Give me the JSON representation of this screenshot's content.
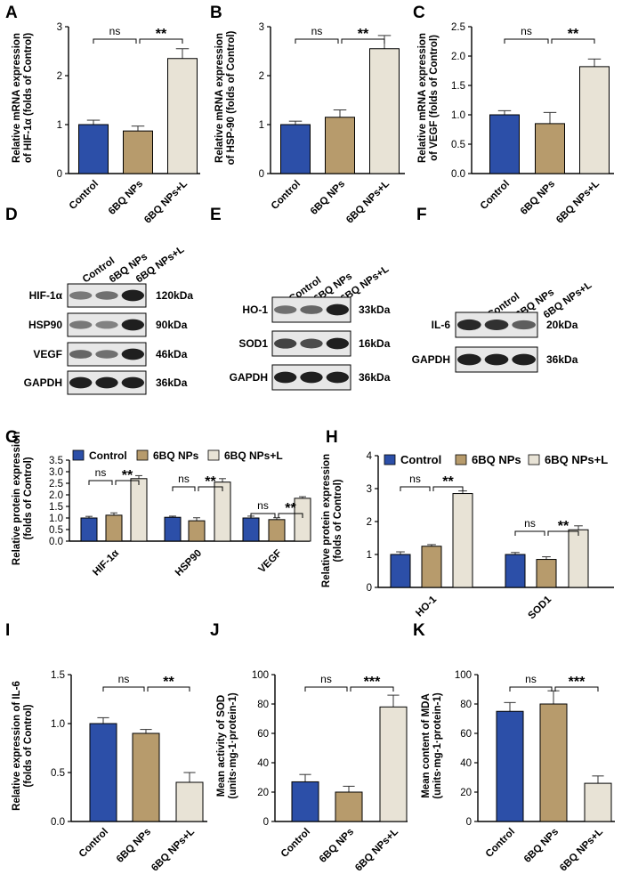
{
  "colors": {
    "control": "#2c4fa8",
    "np": "#b79b6c",
    "npl": "#e8e3d6",
    "edge": "#000000",
    "blot_bg": "#e7e7e7"
  },
  "legend_labels": [
    "Control",
    "6BQ NPs",
    "6BQ NPs+L"
  ],
  "chart_data": [
    {
      "panel": "A",
      "type": "bar",
      "categories": [
        "Control",
        "6BQ NPs",
        "6BQ NPs+L"
      ],
      "values": [
        1.0,
        0.87,
        2.35
      ],
      "errors": [
        0.09,
        0.1,
        0.2
      ],
      "ylabel_lines": [
        "Relative mRNA expression",
        "of HIF-1α (folds of Control)"
      ],
      "ylim": [
        0,
        3
      ],
      "yticks": [
        "0",
        "1",
        "2",
        "3"
      ],
      "sig": [
        {
          "label": "ns"
        },
        {
          "label": "**"
        }
      ]
    },
    {
      "panel": "B",
      "type": "bar",
      "categories": [
        "Control",
        "6BQ NPs",
        "6BQ NPs+L"
      ],
      "values": [
        1.0,
        1.15,
        2.55
      ],
      "errors": [
        0.07,
        0.15,
        0.27
      ],
      "ylabel_lines": [
        "Relative mRNA expression",
        "of HSP-90 (folds of Control)"
      ],
      "ylim": [
        0,
        3
      ],
      "yticks": [
        "0",
        "1",
        "2",
        "3"
      ],
      "sig": [
        {
          "label": "ns"
        },
        {
          "label": "**"
        }
      ]
    },
    {
      "panel": "C",
      "type": "bar",
      "categories": [
        "Control",
        "6BQ NPs",
        "6BQ NPs+L"
      ],
      "values": [
        1.0,
        0.85,
        1.82
      ],
      "errors": [
        0.07,
        0.19,
        0.13
      ],
      "ylabel_lines": [
        "Relative mRNA expression",
        "of VEGF (folds of Control)"
      ],
      "ylim": [
        0,
        2.5
      ],
      "yticks": [
        "0.0",
        "0.5",
        "1.0",
        "1.5",
        "2.0",
        "2.5"
      ],
      "sig": [
        {
          "label": "ns"
        },
        {
          "label": "**"
        }
      ]
    },
    {
      "panel": "G",
      "type": "bar-grouped",
      "groups": [
        "HIF-1α",
        "HSP90",
        "VEGF"
      ],
      "series": [
        {
          "name": "Control",
          "values": [
            1.0,
            1.03,
            1.0
          ],
          "errors": [
            0.07,
            0.05,
            0.08
          ]
        },
        {
          "name": "6BQ NPs",
          "values": [
            1.12,
            0.88,
            0.93
          ],
          "errors": [
            0.1,
            0.13,
            0.08
          ]
        },
        {
          "name": "6BQ NPs+L",
          "values": [
            2.7,
            2.55,
            1.85
          ],
          "errors": [
            0.13,
            0.15,
            0.07
          ]
        }
      ],
      "ylabel_lines": [
        "Relative protein expression",
        "(folds of Control)"
      ],
      "ylim": [
        0,
        3.5
      ],
      "yticks": [
        "0.0",
        "0.5",
        "1.0",
        "1.5",
        "2.0",
        "2.5",
        "3.0",
        "3.5"
      ],
      "sig": [
        {
          "group": 0,
          "ns": "ns",
          "star": "**"
        },
        {
          "group": 1,
          "ns": "ns",
          "star": "**"
        },
        {
          "group": 2,
          "ns": "ns",
          "star": "**"
        }
      ]
    },
    {
      "panel": "H",
      "type": "bar-grouped",
      "groups": [
        "HO-1",
        "SOD1"
      ],
      "series": [
        {
          "name": "Control",
          "values": [
            1.0,
            1.0
          ],
          "errors": [
            0.08,
            0.06
          ]
        },
        {
          "name": "6BQ NPs",
          "values": [
            1.25,
            0.85
          ],
          "errors": [
            0.05,
            0.08
          ]
        },
        {
          "name": "6BQ NPs+L",
          "values": [
            2.85,
            1.75
          ],
          "errors": [
            0.08,
            0.12
          ]
        }
      ],
      "ylabel_lines": [
        "Relative protein expression",
        "(folds of Control)"
      ],
      "ylim": [
        0,
        4
      ],
      "yticks": [
        "0",
        "1",
        "2",
        "3",
        "4"
      ],
      "sig": [
        {
          "group": 0,
          "ns": "ns",
          "star": "**"
        },
        {
          "group": 1,
          "ns": "ns",
          "star": "**"
        }
      ]
    },
    {
      "panel": "I",
      "type": "bar",
      "categories": [
        "Control",
        "6BQ NPs",
        "6BQ NPs+L"
      ],
      "values": [
        1.0,
        0.9,
        0.4
      ],
      "errors": [
        0.06,
        0.04,
        0.1
      ],
      "ylabel_lines": [
        "Relative expression of IL-6",
        "(folds of Control)"
      ],
      "ylim": [
        0,
        1.5
      ],
      "yticks": [
        "0.0",
        "0.5",
        "1.0",
        "1.5"
      ],
      "sig": [
        {
          "label": "ns"
        },
        {
          "label": "**"
        }
      ]
    },
    {
      "panel": "J",
      "type": "bar",
      "categories": [
        "Control",
        "6BQ NPs",
        "6BQ NPs+L"
      ],
      "values": [
        27,
        20,
        78
      ],
      "errors": [
        5,
        4,
        8
      ],
      "ylabel_lines": [
        "Mean activity of SOD",
        "(units·mg-1·protein-1)"
      ],
      "ylim": [
        0,
        100
      ],
      "yticks": [
        "0",
        "20",
        "40",
        "60",
        "80",
        "100"
      ],
      "sig": [
        {
          "label": "ns"
        },
        {
          "label": "***"
        }
      ]
    },
    {
      "panel": "K",
      "type": "bar",
      "categories": [
        "Control",
        "6BQ NPs",
        "6BQ NPs+L"
      ],
      "values": [
        75,
        80,
        26
      ],
      "errors": [
        6,
        9,
        5
      ],
      "ylabel_lines": [
        "Mean content of MDA",
        "(units·mg-1·protein-1)"
      ],
      "ylim": [
        0,
        100
      ],
      "yticks": [
        "0",
        "20",
        "40",
        "60",
        "80",
        "100"
      ],
      "sig": [
        {
          "label": "ns"
        },
        {
          "label": "***"
        }
      ]
    }
  ],
  "blots": [
    {
      "panel": "D",
      "lanes": [
        "Control",
        "6BQ NPs",
        "6BQ NPs+L"
      ],
      "rows": [
        {
          "label": "HIF-1α",
          "kda": "120kDa",
          "intensity": [
            0.45,
            0.5,
            0.95
          ]
        },
        {
          "label": "HSP90",
          "kda": "90kDa",
          "intensity": [
            0.45,
            0.4,
            0.95
          ]
        },
        {
          "label": "VEGF",
          "kda": "46kDa",
          "intensity": [
            0.55,
            0.5,
            0.95
          ]
        },
        {
          "label": "GAPDH",
          "kda": "36kDa",
          "intensity": [
            0.95,
            0.95,
            0.95
          ]
        }
      ]
    },
    {
      "panel": "E",
      "lanes": [
        "Control",
        "6BQ NPs",
        "6BQ NPs+L"
      ],
      "rows": [
        {
          "label": "HO-1",
          "kda": "33kDa",
          "intensity": [
            0.5,
            0.55,
            0.95
          ]
        },
        {
          "label": "SOD1",
          "kda": "16kDa",
          "intensity": [
            0.75,
            0.7,
            0.95
          ]
        },
        {
          "label": "GAPDH",
          "kda": "36kDa",
          "intensity": [
            0.95,
            0.95,
            0.95
          ]
        }
      ]
    },
    {
      "panel": "F",
      "lanes": [
        "Control",
        "6BQ NPs",
        "6BQ NPs+L"
      ],
      "rows": [
        {
          "label": "IL-6",
          "kda": "20kDa",
          "intensity": [
            0.9,
            0.85,
            0.6
          ]
        },
        {
          "label": "GAPDH",
          "kda": "36kDa",
          "intensity": [
            0.95,
            0.95,
            0.95
          ]
        }
      ]
    }
  ]
}
